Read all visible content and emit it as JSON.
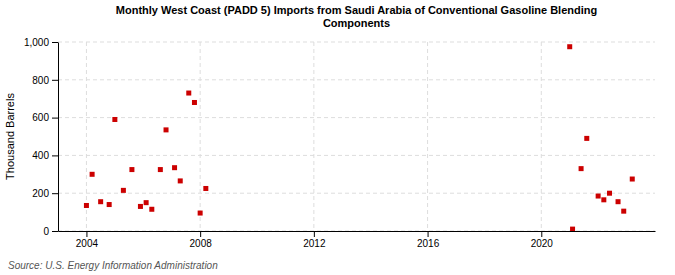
{
  "chart_data": {
    "type": "scatter",
    "title": "Monthly West Coast (PADD 5) Imports from Saudi Arabia of Conventional Gasoline Blending\nComponents",
    "ylabel": "Thousand Barrels",
    "source": "Source: U.S. Energy Information Administration",
    "color": "#cc0000",
    "marker": "square",
    "grid": true,
    "xlim": [
      2003.0,
      2024.0
    ],
    "ylim": [
      0,
      1000
    ],
    "xticks": [
      2004,
      2008,
      2012,
      2016,
      2020
    ],
    "yticks": [
      0,
      200,
      400,
      600,
      800,
      {
        "value": 1000,
        "label": "1,000"
      }
    ],
    "x": [
      2004.0,
      2004.2,
      2004.5,
      2004.8,
      2005.0,
      2005.3,
      2005.6,
      2005.9,
      2006.1,
      2006.3,
      2006.6,
      2006.8,
      2007.1,
      2007.3,
      2007.6,
      2007.8,
      2008.0,
      2008.2,
      2021.0,
      2021.1,
      2021.4,
      2021.6,
      2022.0,
      2022.2,
      2022.4,
      2022.7,
      2022.9,
      2023.2
    ],
    "values": [
      135,
      300,
      155,
      140,
      590,
      215,
      325,
      130,
      150,
      115,
      325,
      535,
      335,
      265,
      730,
      680,
      95,
      225,
      975,
      10,
      330,
      490,
      185,
      165,
      200,
      155,
      105,
      275
    ]
  }
}
